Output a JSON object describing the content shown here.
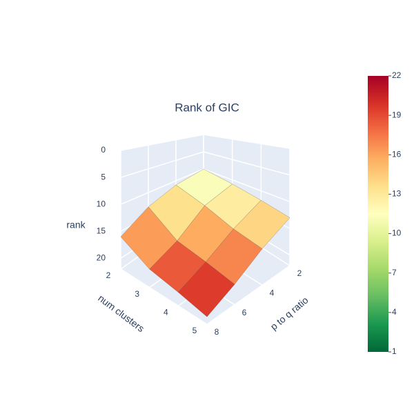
{
  "chart_data": {
    "type": "surface",
    "title": "Rank of GIC",
    "x_label": "num clusters",
    "y_label": "p to q ratio",
    "z_label": "rank",
    "x": [
      2,
      3,
      4,
      5
    ],
    "y": [
      2,
      4,
      6,
      8
    ],
    "z": [
      [
        10,
        11,
        13,
        16
      ],
      [
        11,
        13,
        17,
        19
      ],
      [
        12,
        15,
        18,
        20
      ],
      [
        13,
        16,
        19,
        21
      ]
    ],
    "xlim": [
      2,
      5
    ],
    "ylim": [
      2,
      8
    ],
    "zlim": [
      0,
      22
    ],
    "zaxis_reversed": true,
    "xticks": [
      2,
      3,
      4,
      5
    ],
    "yticks": [
      2,
      4,
      6,
      8
    ],
    "zticks": [
      0,
      5,
      10,
      15,
      20
    ],
    "clim": [
      1,
      22
    ],
    "colorbar_ticks": [
      1,
      4,
      7,
      10,
      13,
      16,
      19,
      22
    ],
    "colorscale": [
      [
        0,
        "#006837"
      ],
      [
        0.1,
        "#1a9850"
      ],
      [
        0.2,
        "#66bd63"
      ],
      [
        0.3,
        "#a6d96a"
      ],
      [
        0.4,
        "#d9ef8b"
      ],
      [
        0.5,
        "#ffffbf"
      ],
      [
        0.6,
        "#fee08b"
      ],
      [
        0.7,
        "#fdae61"
      ],
      [
        0.8,
        "#f46d43"
      ],
      [
        0.9,
        "#d73027"
      ],
      [
        1,
        "#a50026"
      ]
    ]
  }
}
